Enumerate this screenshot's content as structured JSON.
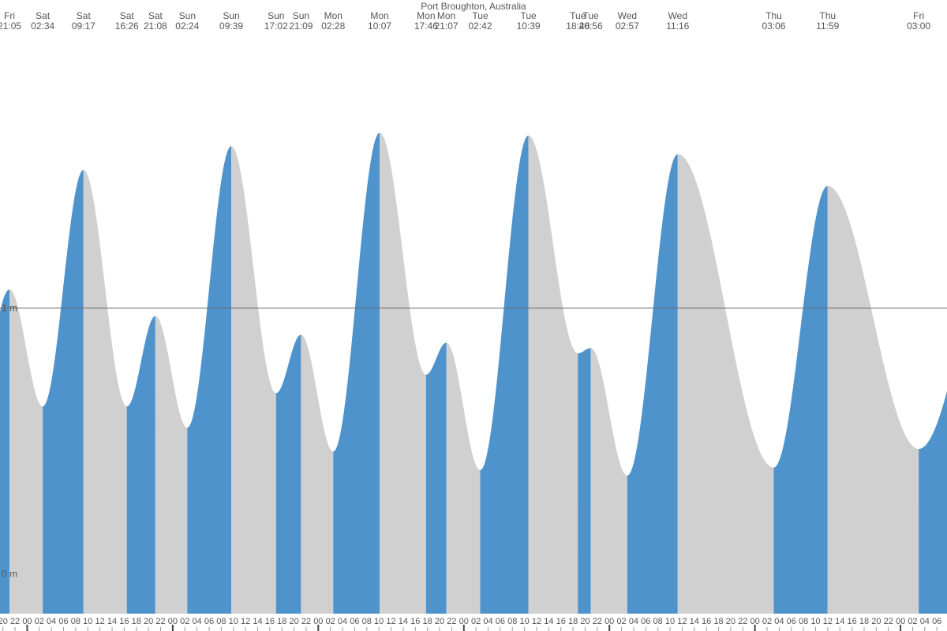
{
  "chart_data": {
    "type": "tide",
    "title": "Port Broughton, Australia",
    "rising_color": "#4f93cd",
    "falling_color": "#d0d0d0",
    "ylim": [
      -0.15,
      2.16
    ],
    "yticks": [
      {
        "value": 0,
        "label": "0 m"
      },
      {
        "value": 1,
        "label": "1 m"
      }
    ],
    "extremes": [
      {
        "day": "Fri",
        "time": "21:05",
        "height": 1.07
      },
      {
        "day": "Sat",
        "time": "02:34",
        "height": 0.63
      },
      {
        "day": "Sat",
        "time": "09:17",
        "height": 1.52
      },
      {
        "day": "Sat",
        "time": "16:26",
        "height": 0.63
      },
      {
        "day": "Sat",
        "time": "21:08",
        "height": 0.97
      },
      {
        "day": "Sun",
        "time": "02:24",
        "height": 0.55
      },
      {
        "day": "Sun",
        "time": "09:39",
        "height": 1.61
      },
      {
        "day": "Sun",
        "time": "17:02",
        "height": 0.68
      },
      {
        "day": "Sun",
        "time": "21:09",
        "height": 0.9
      },
      {
        "day": "Mon",
        "time": "02:28",
        "height": 0.46
      },
      {
        "day": "Mon",
        "time": "10:07",
        "height": 1.66
      },
      {
        "day": "Mon",
        "time": "17:46",
        "height": 0.75
      },
      {
        "day": "Mon",
        "time": "21:07",
        "height": 0.87
      },
      {
        "day": "Tue",
        "time": "02:42",
        "height": 0.39
      },
      {
        "day": "Tue",
        "time": "10:39",
        "height": 1.65
      },
      {
        "day": "Tue",
        "time": "18:48",
        "height": 0.83
      },
      {
        "day": "Tue",
        "time": "20:56",
        "height": 0.85
      },
      {
        "day": "Wed",
        "time": "02:57",
        "height": 0.37
      },
      {
        "day": "Wed",
        "time": "11:16",
        "height": 1.58
      },
      {
        "day": "Thu",
        "time": "03:06",
        "height": 0.4
      },
      {
        "day": "Thu",
        "time": "11:59",
        "height": 1.46
      },
      {
        "day": "Fri",
        "time": "03:00",
        "height": 0.47
      }
    ],
    "hour_labels": [
      "20",
      "22",
      "00",
      "02",
      "04",
      "06",
      "08",
      "10",
      "12",
      "14",
      "16",
      "18",
      "20",
      "22",
      "00",
      "02",
      "04",
      "06",
      "08",
      "10",
      "12",
      "14",
      "16",
      "18",
      "20",
      "22",
      "00",
      "02",
      "04",
      "06",
      "08",
      "10",
      "12",
      "14",
      "16",
      "18",
      "20",
      "22",
      "00",
      "02",
      "04",
      "06",
      "08",
      "10",
      "12",
      "14",
      "16",
      "18",
      "20",
      "22",
      "00",
      "02",
      "04",
      "06",
      "08",
      "10",
      "12",
      "14",
      "16",
      "18",
      "20",
      "22",
      "00",
      "02",
      "04",
      "06",
      "08",
      "10",
      "12",
      "14",
      "16",
      "18",
      "20",
      "22",
      "00",
      "02",
      "04",
      "06"
    ]
  }
}
